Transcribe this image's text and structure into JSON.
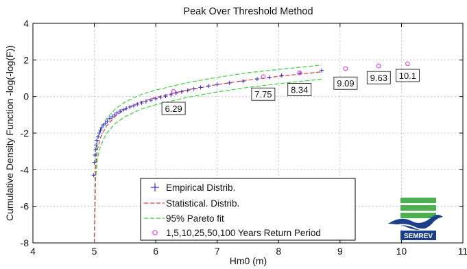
{
  "chart_data": {
    "type": "scatter",
    "title": "Peak Over Threshold Method",
    "xlabel": "Hm0 (m)",
    "ylabel": "Cumulative Density Function -log(-log(F))",
    "xlim": [
      4,
      11
    ],
    "ylim": [
      -8,
      4
    ],
    "xticks": [
      "4",
      "5",
      "6",
      "7",
      "8",
      "9",
      "10",
      "11"
    ],
    "yticks": [
      "-8",
      "-6",
      "-4",
      "-2",
      "0",
      "2",
      "4"
    ],
    "grid": true,
    "legend_position": "bottom-center",
    "series": [
      {
        "name": "Empirical Distrib.",
        "marker": "plus",
        "color": "#2b2bd6",
        "x": [
          4.99,
          5.0,
          5.01,
          5.02,
          5.03,
          5.04,
          5.06,
          5.08,
          5.1,
          5.12,
          5.15,
          5.18,
          5.21,
          5.25,
          5.29,
          5.33,
          5.37,
          5.42,
          5.47,
          5.52,
          5.58,
          5.64,
          5.7,
          5.77,
          5.84,
          5.92,
          6.0,
          6.08,
          6.16,
          6.25,
          6.33,
          6.42,
          6.52,
          6.62,
          6.73,
          6.86,
          7.0,
          7.2,
          7.42,
          7.65,
          7.85,
          8.05,
          8.35,
          8.7
        ],
        "y": [
          -4.3,
          -3.6,
          -3.2,
          -2.9,
          -2.65,
          -2.4,
          -2.2,
          -2.0,
          -1.85,
          -1.7,
          -1.55,
          -1.45,
          -1.35,
          -1.2,
          -1.1,
          -1.0,
          -0.9,
          -0.8,
          -0.72,
          -0.65,
          -0.57,
          -0.5,
          -0.42,
          -0.35,
          -0.27,
          -0.2,
          -0.12,
          -0.05,
          0.02,
          0.1,
          0.18,
          0.26,
          0.34,
          0.42,
          0.5,
          0.58,
          0.66,
          0.74,
          0.84,
          0.96,
          1.05,
          1.15,
          1.28,
          1.42
        ]
      },
      {
        "name": "Statistical. Distrib.",
        "style": "dashed",
        "color": "#e03b3b",
        "x": [
          5.0,
          5.02,
          5.05,
          5.1,
          5.2,
          5.35,
          5.5,
          5.75,
          6.0,
          6.5,
          7.0,
          7.5,
          8.0,
          8.7
        ],
        "y": [
          -8.0,
          -3.9,
          -2.9,
          -2.25,
          -1.6,
          -1.05,
          -0.7,
          -0.3,
          -0.05,
          0.35,
          0.65,
          0.9,
          1.1,
          1.35
        ]
      },
      {
        "name": "95% Pareto fit",
        "style": "dashed",
        "color": "#39d139",
        "bounds": [
          {
            "x": [
              5.0,
              5.02,
              5.05,
              5.1,
              5.2,
              5.35,
              5.5,
              5.75,
              6.0,
              6.5,
              7.0,
              7.5,
              8.0,
              8.7
            ],
            "y": [
              -8.0,
              -3.3,
              -2.4,
              -1.8,
              -1.2,
              -0.65,
              -0.3,
              0.1,
              0.35,
              0.75,
              1.05,
              1.3,
              1.48,
              1.72
            ]
          },
          {
            "x": [
              5.0,
              5.02,
              5.05,
              5.1,
              5.2,
              5.35,
              5.5,
              5.75,
              6.0,
              6.5,
              7.0,
              7.5,
              8.0,
              8.7
            ],
            "y": [
              -8.0,
              -4.5,
              -3.4,
              -2.7,
              -2.0,
              -1.45,
              -1.1,
              -0.7,
              -0.45,
              -0.05,
              0.25,
              0.5,
              0.7,
              0.95
            ]
          }
        ]
      },
      {
        "name": "1,5,10,25,50,100 Years Return Period",
        "marker": "circle",
        "color": "#e040e0",
        "x": [
          6.29,
          7.75,
          8.34,
          9.09,
          9.63,
          10.1
        ],
        "y": [
          0.28,
          1.08,
          1.3,
          1.52,
          1.67,
          1.79
        ],
        "labels": [
          "6.29",
          "7.75",
          "8.34",
          "9.09",
          "9.63",
          "10.1"
        ],
        "label_y": [
          -0.65,
          0.13,
          0.38,
          0.73,
          1.03,
          1.15
        ]
      }
    ]
  },
  "logo": {
    "text": "SEMREV",
    "colors": [
      "#4caf50",
      "#1a3f8a"
    ]
  }
}
